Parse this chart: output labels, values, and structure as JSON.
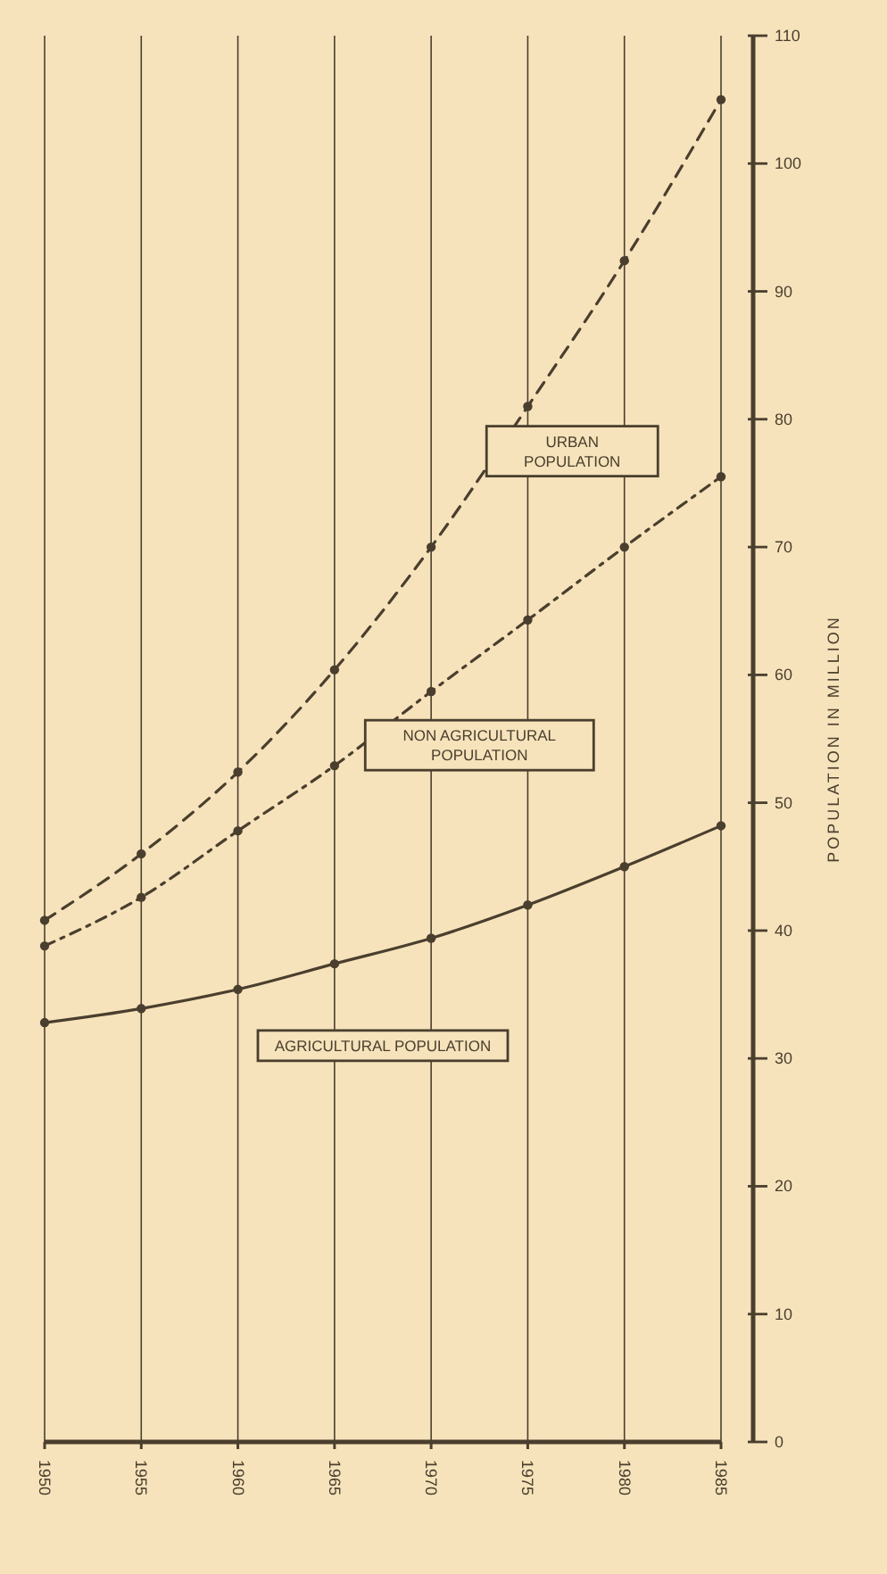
{
  "chart_data": {
    "type": "line",
    "ylabel": "POPULATION IN MILLION",
    "x": [
      1950,
      1955,
      1960,
      1965,
      1970,
      1975,
      1980,
      1985
    ],
    "xlim": [
      1950,
      1985
    ],
    "xticks": [
      1950,
      1955,
      1960,
      1965,
      1970,
      1975,
      1980,
      1985
    ],
    "ylim": [
      0,
      110
    ],
    "yticks": [
      0,
      10,
      20,
      30,
      40,
      50,
      60,
      70,
      80,
      90,
      100,
      110
    ],
    "grid": "x",
    "marker": "circle",
    "legend": false,
    "series": [
      {
        "name": "URBAN POPULATION",
        "color": "#4a3f2e",
        "line_style": "dashed",
        "values": [
          40.8,
          46,
          52.4,
          60.4,
          70,
          81,
          92.4,
          105
        ]
      },
      {
        "name": "NON AGRICULTURAL POPULATION",
        "color": "#4a3f2e",
        "line_style": "dashdot",
        "values": [
          38.8,
          42.6,
          47.8,
          52.9,
          58.7,
          64.3,
          70,
          75.5
        ]
      },
      {
        "name": "AGRICULTURAL POPULATION",
        "color": "#4a3f2e",
        "line_style": "solid",
        "values": [
          32.8,
          33.9,
          35.4,
          37.4,
          39.4,
          42,
          45,
          48.2
        ]
      }
    ]
  }
}
